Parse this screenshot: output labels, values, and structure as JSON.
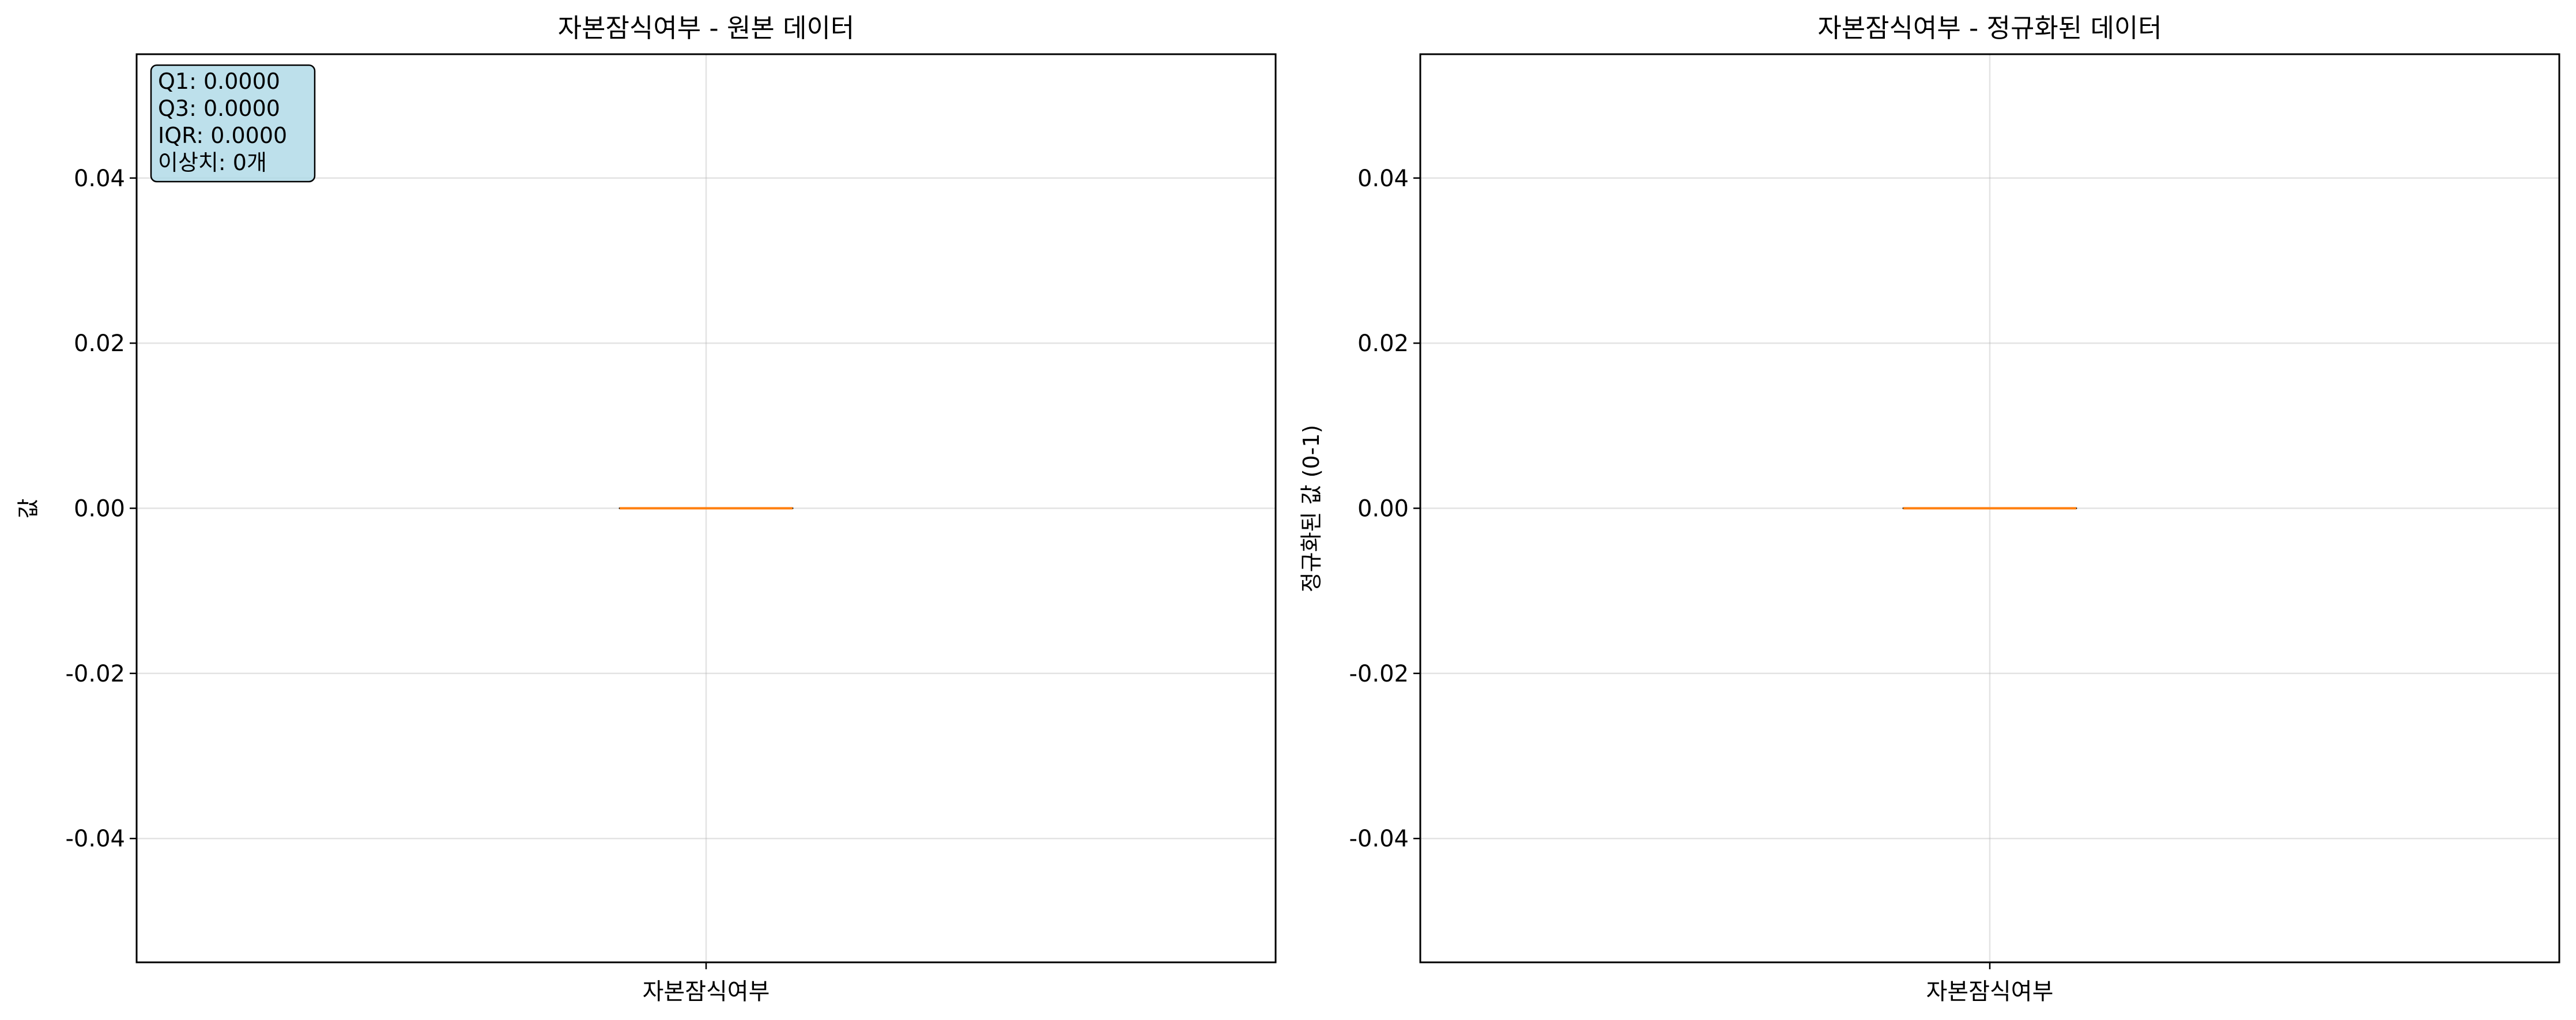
{
  "chart_data": [
    {
      "type": "box",
      "title": "자본잠식여부 - 원본 데이터",
      "xlabel": "",
      "ylabel": "값",
      "categories": [
        "자본잠식여부"
      ],
      "boxes": [
        {
          "category": "자본잠식여부",
          "min": 0,
          "q1": 0,
          "median": 0,
          "q3": 0,
          "max": 0,
          "outliers": []
        }
      ],
      "ylim": [
        -0.055,
        0.055
      ],
      "yticks": [
        -0.04,
        -0.02,
        0.0,
        0.02,
        0.04
      ],
      "ytick_labels": [
        "-0.04",
        "-0.02",
        "0.00",
        "0.02",
        "0.04"
      ],
      "grid": true,
      "stats_box": {
        "lines": [
          "Q1: 0.0000",
          "Q3: 0.0000",
          "IQR: 0.0000",
          "이상치: 0개"
        ],
        "placement": "top-left",
        "background": "#add8e6"
      }
    },
    {
      "type": "box",
      "title": "자본잠식여부 - 정규화된 데이터",
      "xlabel": "",
      "ylabel": "정규화된 값 (0-1)",
      "categories": [
        "자본잠식여부"
      ],
      "boxes": [
        {
          "category": "자본잠식여부",
          "min": 0,
          "q1": 0,
          "median": 0,
          "q3": 0,
          "max": 0,
          "outliers": []
        }
      ],
      "ylim": [
        -0.055,
        0.055
      ],
      "yticks": [
        -0.04,
        -0.02,
        0.0,
        0.02,
        0.04
      ],
      "ytick_labels": [
        "-0.04",
        "-0.02",
        "0.00",
        "0.02",
        "0.04"
      ],
      "grid": true
    }
  ],
  "colors": {
    "median": "#ff7f0e",
    "box": "#000000",
    "grid": "#b0b0b0",
    "stats_fill": "#add8e6"
  }
}
